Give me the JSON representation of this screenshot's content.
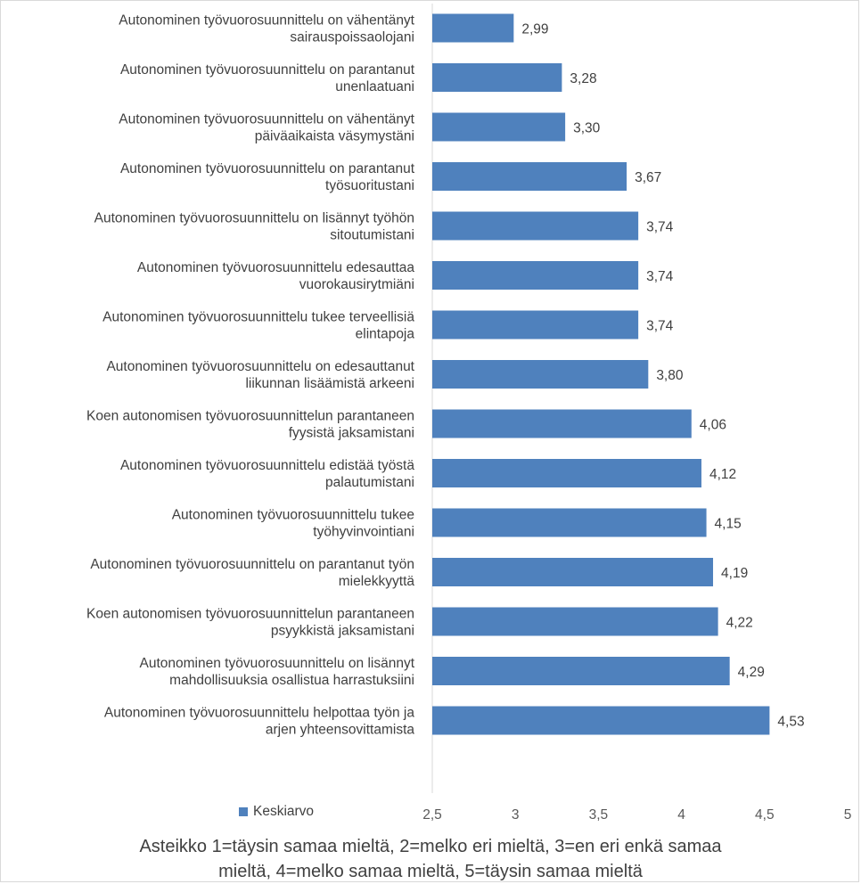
{
  "chart_data": {
    "type": "bar",
    "orientation": "horizontal",
    "categories": [
      [
        "Autonominen työvuorosuunnittelu on vähentänyt",
        "sairauspoissaolojani"
      ],
      [
        "Autonominen työvuorosuunnittelu on parantanut",
        "unenlaatuani"
      ],
      [
        "Autonominen työvuorosuunnittelu on vähentänyt",
        "päiväaikaista väsymystäni"
      ],
      [
        "Autonominen työvuorosuunnittelu on parantanut",
        "työsuoritustani"
      ],
      [
        "Autonominen työvuorosuunnittelu on lisännyt työhön",
        "sitoutumistani"
      ],
      [
        "Autonominen työvuorosuunnittelu edesauttaa",
        "vuorokausirytmiäni"
      ],
      [
        "Autonominen työvuorosuunnittelu tukee terveellisiä",
        "elintapoja"
      ],
      [
        "Autonominen työvuorosuunnittelu on edesauttanut",
        "liikunnan lisäämistä arkeeni"
      ],
      [
        "Koen autonomisen työvuorosuunnittelun parantaneen",
        "fyysistä jaksamistani"
      ],
      [
        "Autonominen työvuorosuunnittelu edistää työstä",
        "palautumistani"
      ],
      [
        "Autonominen työvuorosuunnittelu tukee",
        "työhyvinvointiani"
      ],
      [
        "Autonominen työvuorosuunnittelu on parantanut työn",
        "mielekkyyttä"
      ],
      [
        "Koen autonomisen työvuorosuunnittelun parantaneen",
        "psyykkistä jaksamistani"
      ],
      [
        "Autonominen työvuorosuunnittelu on lisännyt",
        "mahdollisuuksia osallistua harrastuksiini"
      ],
      [
        "Autonominen työvuorosuunnittelu helpottaa työn ja",
        "arjen yhteensovittamista"
      ]
    ],
    "series": [
      {
        "name": "Keskiarvo",
        "values": [
          2.99,
          3.28,
          3.3,
          3.67,
          3.74,
          3.74,
          3.74,
          3.8,
          4.06,
          4.12,
          4.15,
          4.19,
          4.22,
          4.29,
          4.53
        ],
        "value_labels": [
          "2,99",
          "3,28",
          "3,30",
          "3,67",
          "3,74",
          "3,74",
          "3,74",
          "3,80",
          "4,06",
          "4,12",
          "4,15",
          "4,19",
          "4,22",
          "4,29",
          "4,53"
        ]
      }
    ],
    "xlim": [
      2.5,
      5
    ],
    "x_ticks": [
      2.5,
      3,
      3.5,
      4,
      4.5,
      5
    ],
    "x_tick_labels": [
      "2,5",
      "3",
      "3,5",
      "4",
      "4,5",
      "5"
    ],
    "bar_color": "#4f81bd",
    "grid": false,
    "legend_position": "bottom-left",
    "caption_lines": [
      "Asteikko 1=täysin samaa mieltä, 2=melko eri mieltä, 3=en eri enkä samaa",
      "mieltä, 4=melko samaa mieltä, 5=täysin samaa mieltä"
    ]
  }
}
